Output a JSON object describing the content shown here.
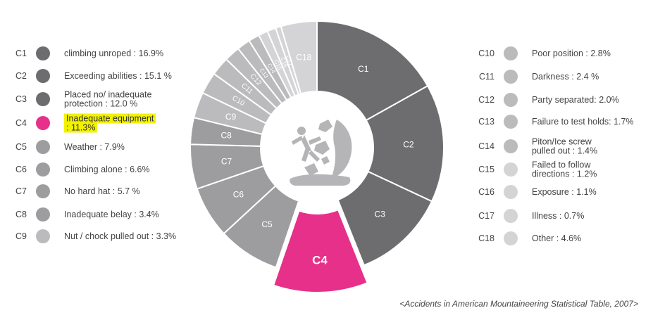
{
  "chart_data": {
    "type": "pie",
    "variant": "donut",
    "highlight": "C4",
    "colors": {
      "dark": "#6d6d6f",
      "mid": "#9d9d9f",
      "light": "#bbbbbd",
      "lighter": "#d4d4d6",
      "accent": "#e6308a",
      "highlight_bg": "#f2f200"
    },
    "slices": [
      {
        "code": "C1",
        "label": "climbing unroped : 16.9%",
        "value": 16.9,
        "color": "#6d6d6f",
        "text": "#ffffff"
      },
      {
        "code": "C2",
        "label": "Exceeding abilities : 15.1 %",
        "value": 15.1,
        "color": "#6d6d6f",
        "text": "#ffffff"
      },
      {
        "code": "C3",
        "label": "Placed no/ inadequate\nprotection : 12.0 %",
        "value": 12.0,
        "color": "#6d6d6f",
        "text": "#ffffff"
      },
      {
        "code": "C4",
        "label": "Inadequate equipment\n: 11.3%",
        "value": 11.3,
        "color": "#e6308a",
        "text": "#ffffff"
      },
      {
        "code": "C5",
        "label": "Weather : 7.9%",
        "value": 7.9,
        "color": "#9d9d9f",
        "text": "#ffffff"
      },
      {
        "code": "C6",
        "label": "Climbing alone : 6.6%",
        "value": 6.6,
        "color": "#9d9d9f",
        "text": "#ffffff"
      },
      {
        "code": "C7",
        "label": "No hard hat : 5.7 %",
        "value": 5.7,
        "color": "#9d9d9f",
        "text": "#ffffff"
      },
      {
        "code": "C8",
        "label": "Inadequate belay : 3.4%",
        "value": 3.4,
        "color": "#9d9d9f",
        "text": "#ffffff"
      },
      {
        "code": "C9",
        "label": "Nut / chock pulled out : 3.3%",
        "value": 3.3,
        "color": "#bbbbbd",
        "text": "#ffffff"
      },
      {
        "code": "C10",
        "label": "Poor position : 2.8%",
        "value": 2.8,
        "color": "#bbbbbd",
        "text": "#ffffff"
      },
      {
        "code": "C11",
        "label": "Darkness : 2.4 %",
        "value": 2.4,
        "color": "#bbbbbd",
        "text": "#ffffff"
      },
      {
        "code": "C12",
        "label": "Party separated: 2.0%",
        "value": 2.0,
        "color": "#bbbbbd",
        "text": "#ffffff"
      },
      {
        "code": "C13",
        "label": "Failure to test holds: 1.7%",
        "value": 1.7,
        "color": "#bbbbbd",
        "text": "#ffffff"
      },
      {
        "code": "C14",
        "label": "Piton/Ice screw\npulled out : 1.4%",
        "value": 1.4,
        "color": "#bbbbbd",
        "text": "#ffffff"
      },
      {
        "code": "C15",
        "label": "Failed to follow\ndirections : 1.2%",
        "value": 1.2,
        "color": "#d4d4d6",
        "text": "#ffffff"
      },
      {
        "code": "C16",
        "label": "Exposure : 1.1%",
        "value": 1.1,
        "color": "#d4d4d6",
        "text": "#ffffff"
      },
      {
        "code": "C17",
        "label": "Illness : 0.7%",
        "value": 0.7,
        "color": "#d4d4d6",
        "text": "#ffffff"
      },
      {
        "code": "C18",
        "label": "Other : 4.6%",
        "value": 4.6,
        "color": "#d4d4d6",
        "text": "#ffffff"
      }
    ],
    "center_icon": "falling-climber-icon",
    "source": "<Accidents in American Mountaineering Statistical Table, 2007>"
  }
}
